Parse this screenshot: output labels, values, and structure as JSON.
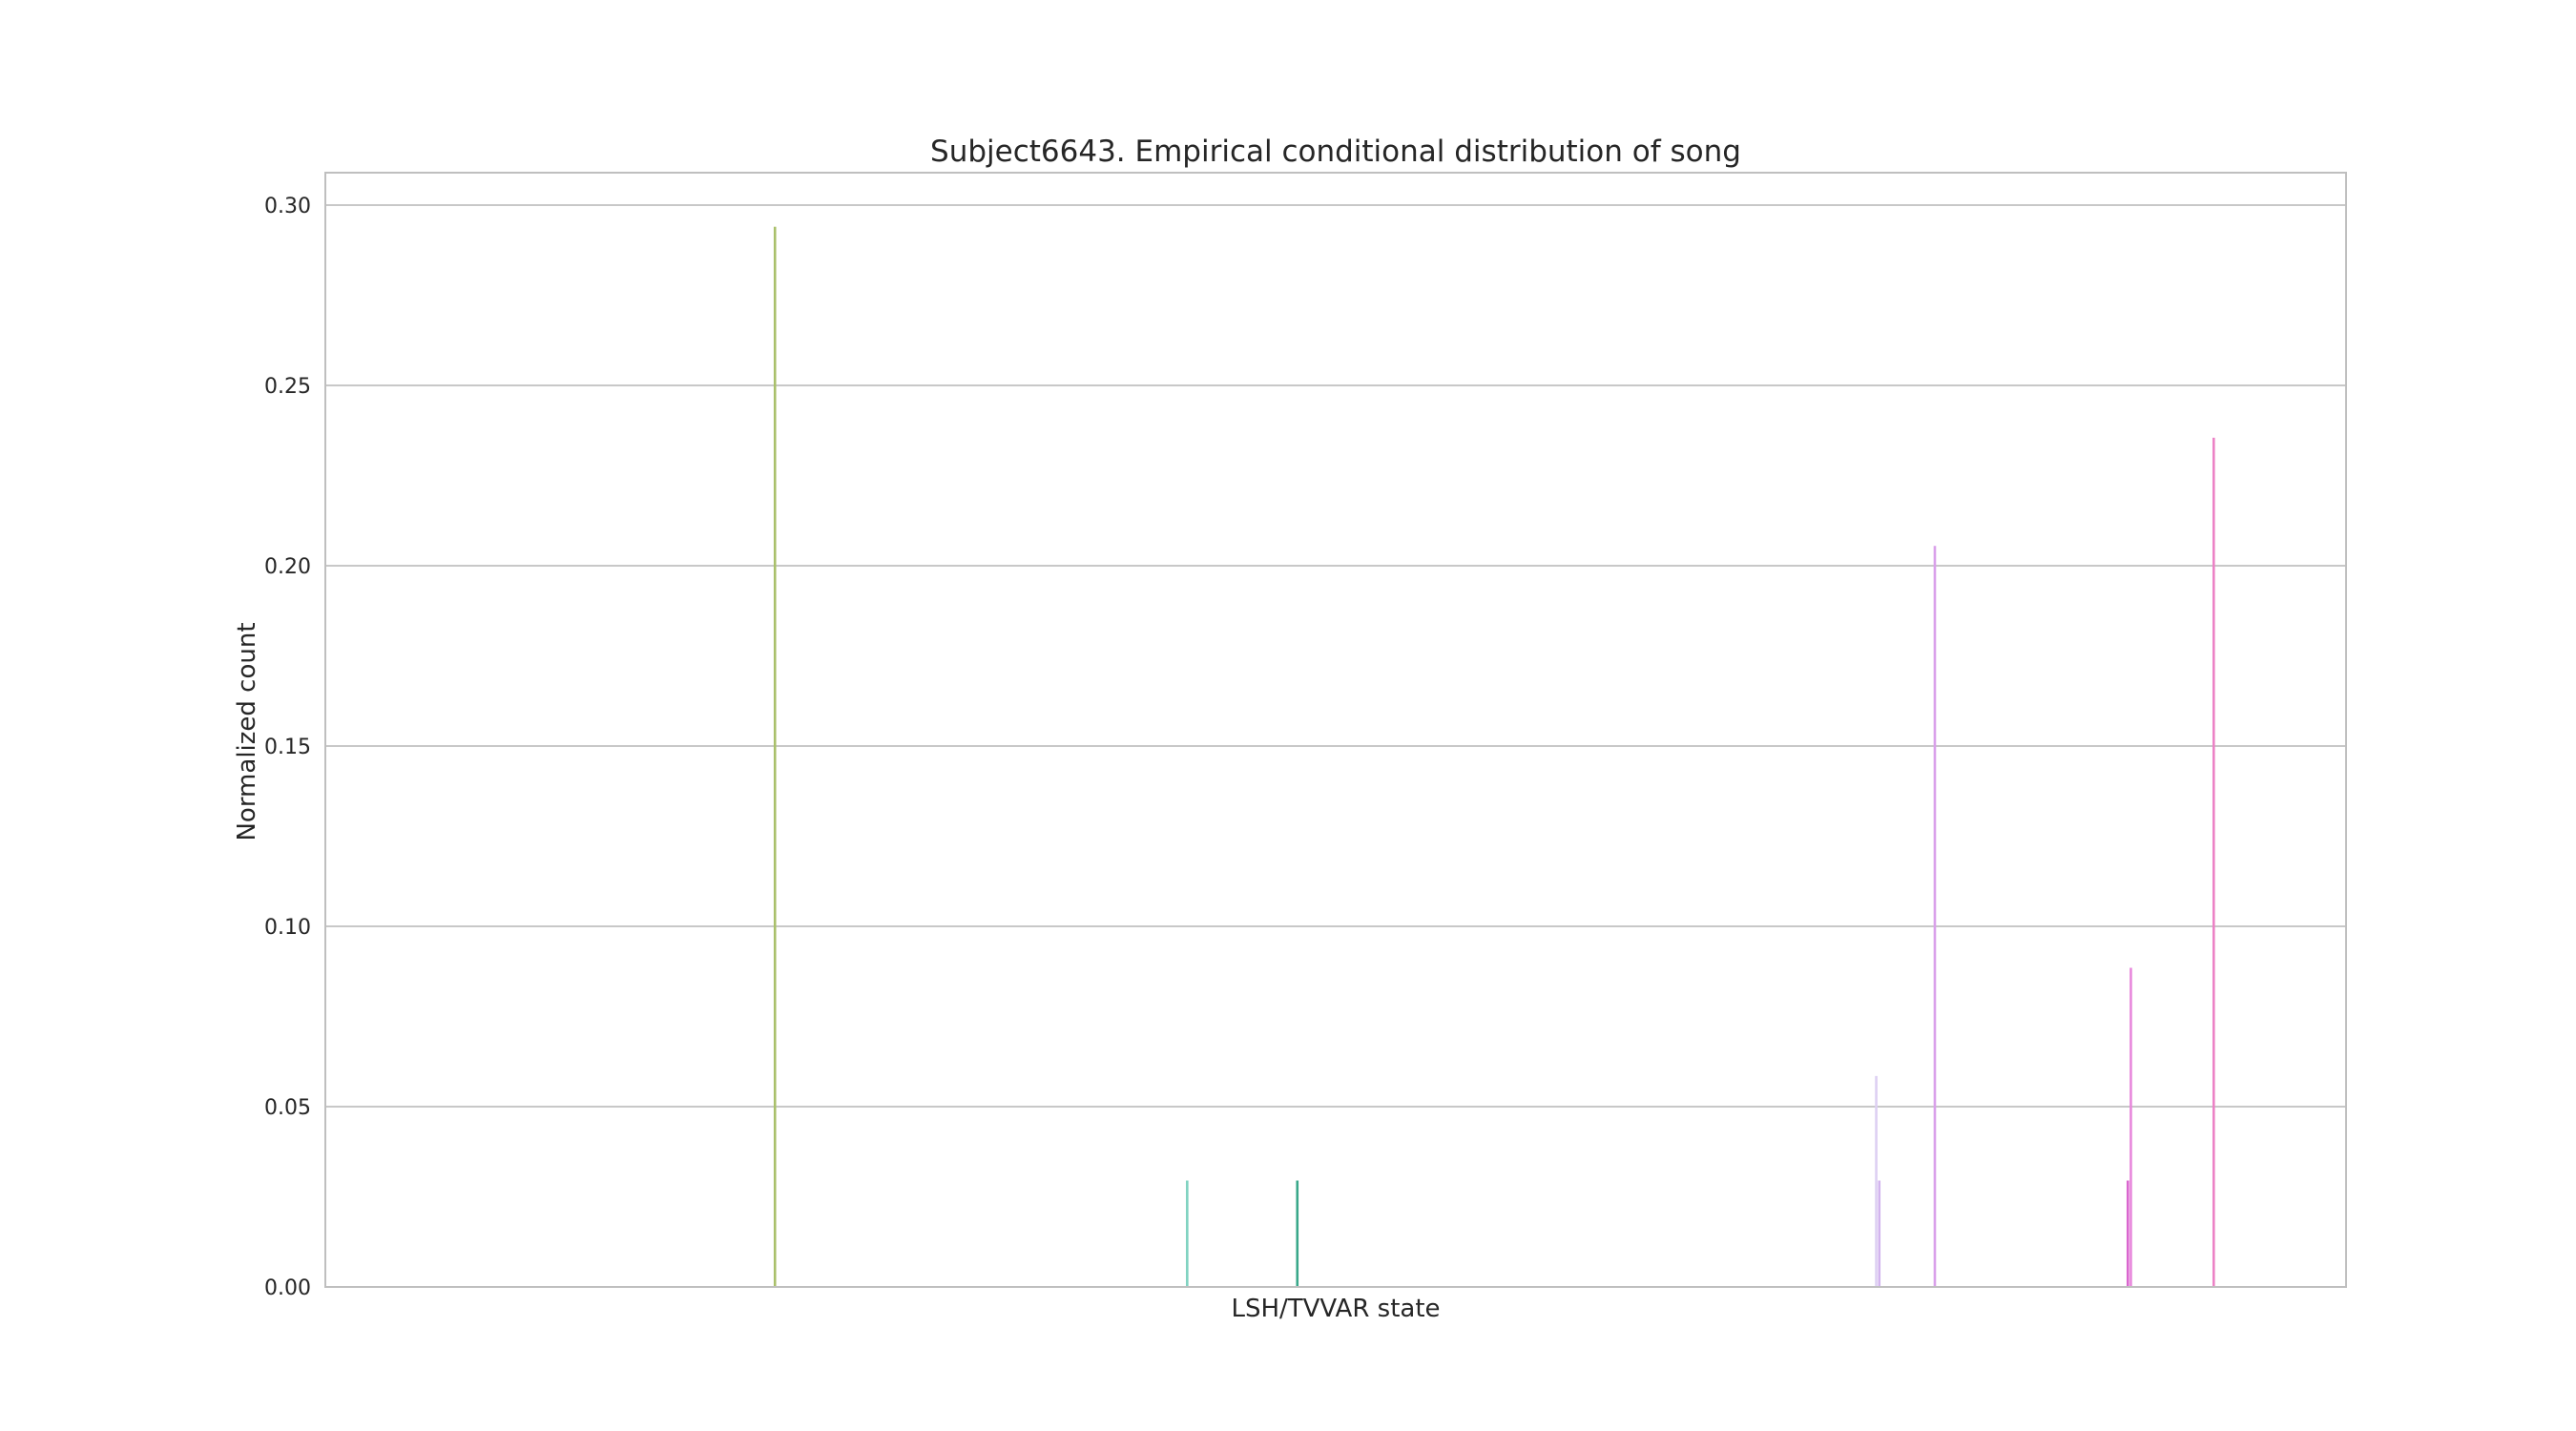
{
  "chart_data": {
    "type": "bar",
    "title": "Subject6643. Empirical conditional distribution of song",
    "xlabel": "LSH/TVVAR state",
    "ylabel": "Normalized count",
    "ylim": [
      0,
      0.309
    ],
    "yticks": [
      "0.00",
      "0.05",
      "0.10",
      "0.15",
      "0.20",
      "0.25",
      "0.30"
    ],
    "ytick_values": [
      0,
      0.05,
      0.1,
      0.15,
      0.2,
      0.25,
      0.3
    ],
    "grid": true,
    "x_range": [
      0,
      1
    ],
    "bars": [
      {
        "x": 0.2225,
        "value": 0.294,
        "color": "#a9c06a"
      },
      {
        "x": 0.4265,
        "value": 0.0295,
        "color": "#7fd2c0"
      },
      {
        "x": 0.481,
        "value": 0.0295,
        "color": "#3aa88a"
      },
      {
        "x": 0.7675,
        "value": 0.0585,
        "color": "#ddd0f2"
      },
      {
        "x": 0.769,
        "value": 0.0295,
        "color": "#d2b4ee"
      },
      {
        "x": 0.7965,
        "value": 0.2055,
        "color": "#d9a0ea"
      },
      {
        "x": 0.892,
        "value": 0.0295,
        "color": "#d966cf"
      },
      {
        "x": 0.8935,
        "value": 0.0885,
        "color": "#e888dc"
      },
      {
        "x": 0.9345,
        "value": 0.2355,
        "color": "#ec82c6"
      }
    ]
  }
}
